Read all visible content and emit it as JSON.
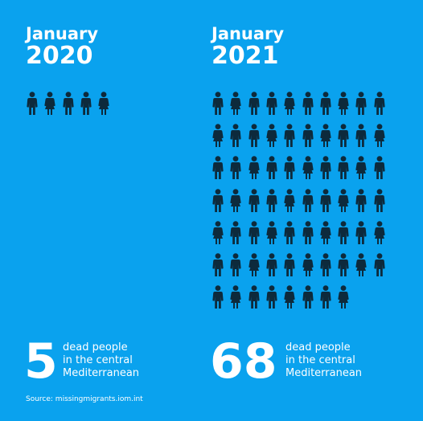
{
  "chart_data": [
    {
      "type": "pictogram",
      "month": "January",
      "year": "2020",
      "values": [
        5
      ],
      "count_label": "5",
      "caption_lines": [
        "dead people",
        "in the central",
        "Mediterranean"
      ],
      "icon": "person-icon",
      "per_row": 10,
      "color": "#0d2a3c"
    },
    {
      "type": "pictogram",
      "month": "January",
      "year": "2021",
      "values": [
        68
      ],
      "count_label": "68",
      "caption_lines": [
        "dead people",
        "in the central",
        "Mediterranean"
      ],
      "icon": "person-icon",
      "per_row": 10,
      "color": "#0d2a3c"
    }
  ],
  "source": "Source: missingmigrants.iom.int",
  "colors": {
    "background": "#0aa2ee",
    "figure": "#0d2a3c",
    "text": "#ffffff"
  }
}
